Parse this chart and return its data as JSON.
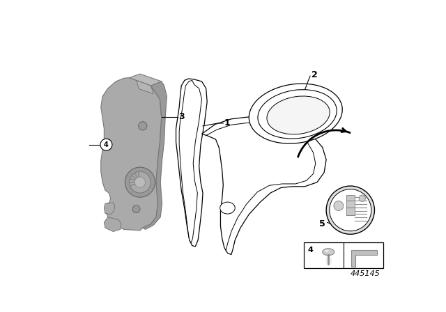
{
  "background_color": "#ffffff",
  "diagram_id": "445145",
  "line_color": "#000000",
  "bracket_fill": "#aaaaaa",
  "bracket_edge": "#777777",
  "bracket_dark": "#888888",
  "bracket_light": "#cccccc",
  "actuator_fill": "#dddddd"
}
